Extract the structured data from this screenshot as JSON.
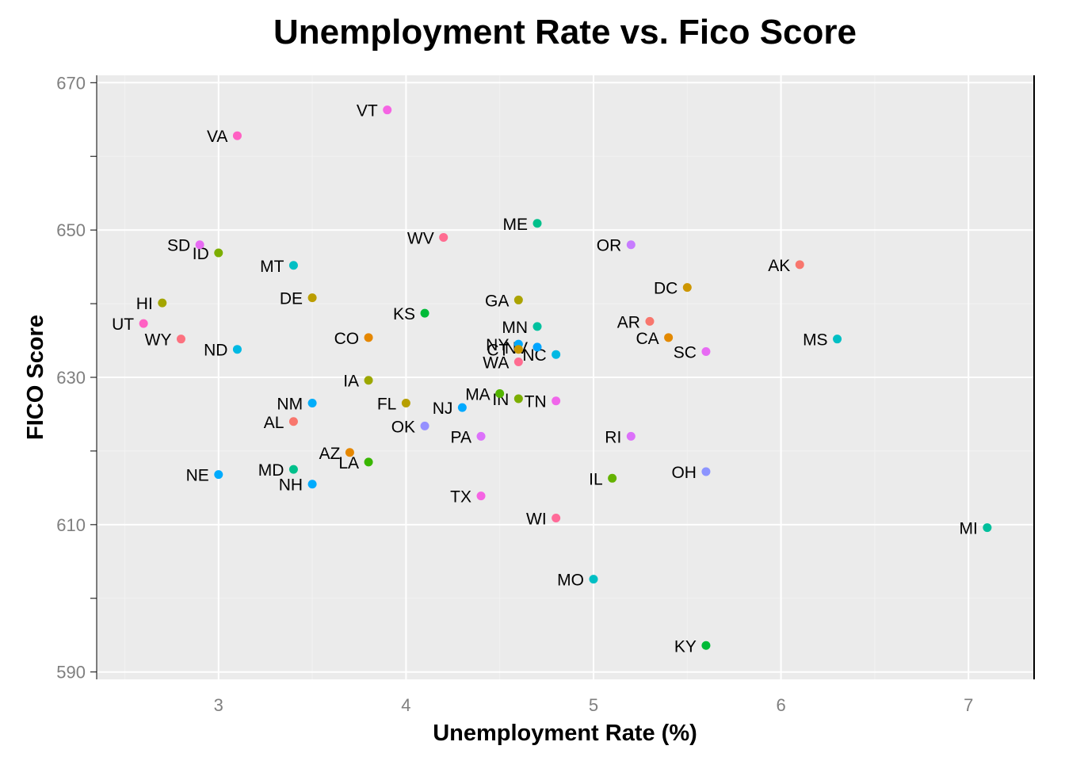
{
  "chart_data": {
    "type": "scatter",
    "title": "Unemployment Rate vs. Fico Score",
    "xlabel": "Unemployment Rate (%)",
    "ylabel": "FICO Score",
    "xlim": [
      2.35,
      7.35
    ],
    "ylim": [
      589,
      671
    ],
    "x_ticks": [
      3,
      4,
      5,
      6,
      7
    ],
    "y_ticks": [
      590,
      610,
      630,
      650,
      670
    ],
    "grid": true,
    "legend": "none",
    "points": [
      {
        "label": "VT",
        "x": 3.9,
        "y": 666.3,
        "color": "#F564E3"
      },
      {
        "label": "VA",
        "x": 3.1,
        "y": 662.8,
        "color": "#FF61C3"
      },
      {
        "label": "ME",
        "x": 4.7,
        "y": 650.9,
        "color": "#00C08B"
      },
      {
        "label": "WV",
        "x": 4.2,
        "y": 649.0,
        "color": "#FF6C91"
      },
      {
        "label": "SD",
        "x": 2.9,
        "y": 648.0,
        "color": "#E76BF3"
      },
      {
        "label": "OR",
        "x": 5.2,
        "y": 648.0,
        "color": "#C77CFF"
      },
      {
        "label": "ID",
        "x": 3.0,
        "y": 646.9,
        "color": "#7CAE00"
      },
      {
        "label": "MT",
        "x": 3.4,
        "y": 645.2,
        "color": "#00BFC4"
      },
      {
        "label": "AK",
        "x": 6.1,
        "y": 645.3,
        "color": "#F8766D"
      },
      {
        "label": "DC",
        "x": 5.5,
        "y": 642.2,
        "color": "#CD9600"
      },
      {
        "label": "DE",
        "x": 3.5,
        "y": 640.8,
        "color": "#BB9D00"
      },
      {
        "label": "GA",
        "x": 4.6,
        "y": 640.5,
        "color": "#ABA300"
      },
      {
        "label": "HI",
        "x": 2.7,
        "y": 640.1,
        "color": "#A3A500"
      },
      {
        "label": "KS",
        "x": 4.1,
        "y": 638.7,
        "color": "#00BA38"
      },
      {
        "label": "AR",
        "x": 5.3,
        "y": 637.6,
        "color": "#F8766D"
      },
      {
        "label": "UT",
        "x": 2.6,
        "y": 637.3,
        "color": "#FF61C3"
      },
      {
        "label": "MN",
        "x": 4.7,
        "y": 636.9,
        "color": "#00C19F"
      },
      {
        "label": "CO",
        "x": 3.8,
        "y": 635.4,
        "color": "#E58700"
      },
      {
        "label": "CA",
        "x": 5.4,
        "y": 635.4,
        "color": "#E38900"
      },
      {
        "label": "WY",
        "x": 2.8,
        "y": 635.2,
        "color": "#FC717F"
      },
      {
        "label": "MS",
        "x": 6.3,
        "y": 635.2,
        "color": "#00BFC4"
      },
      {
        "label": "NY",
        "x": 4.6,
        "y": 634.5,
        "color": "#00A9FF"
      },
      {
        "label": "CT",
        "x": 4.6,
        "y": 633.8,
        "color": "#C99800"
      },
      {
        "label": "NV",
        "x": 4.7,
        "y": 634.1,
        "color": "#00A5FF"
      },
      {
        "label": "ND",
        "x": 3.1,
        "y": 633.8,
        "color": "#00B9E3"
      },
      {
        "label": "SC",
        "x": 5.6,
        "y": 633.5,
        "color": "#E76BF3"
      },
      {
        "label": "NC",
        "x": 4.8,
        "y": 633.1,
        "color": "#00B9E3"
      },
      {
        "label": "WA",
        "x": 4.6,
        "y": 632.1,
        "color": "#FF6C91"
      },
      {
        "label": "IA",
        "x": 3.8,
        "y": 629.6,
        "color": "#9CA700"
      },
      {
        "label": "MA",
        "x": 4.5,
        "y": 627.8,
        "color": "#53B400"
      },
      {
        "label": "IN",
        "x": 4.6,
        "y": 627.1,
        "color": "#7CAE00"
      },
      {
        "label": "TN",
        "x": 4.8,
        "y": 626.8,
        "color": "#F066EA"
      },
      {
        "label": "FL",
        "x": 4.0,
        "y": 626.5,
        "color": "#B79F00"
      },
      {
        "label": "NM",
        "x": 3.5,
        "y": 626.5,
        "color": "#00ADFA"
      },
      {
        "label": "NJ",
        "x": 4.3,
        "y": 625.9,
        "color": "#00A9FF"
      },
      {
        "label": "AL",
        "x": 3.4,
        "y": 624.0,
        "color": "#F8766D"
      },
      {
        "label": "OK",
        "x": 4.1,
        "y": 623.4,
        "color": "#9590FF"
      },
      {
        "label": "PA",
        "x": 4.4,
        "y": 622.0,
        "color": "#DC71FA"
      },
      {
        "label": "RI",
        "x": 5.2,
        "y": 622.0,
        "color": "#DC71FA"
      },
      {
        "label": "AZ",
        "x": 3.7,
        "y": 619.8,
        "color": "#E58700"
      },
      {
        "label": "LA",
        "x": 3.8,
        "y": 618.5,
        "color": "#39B600"
      },
      {
        "label": "MD",
        "x": 3.4,
        "y": 617.5,
        "color": "#00C08B"
      },
      {
        "label": "OH",
        "x": 5.6,
        "y": 617.2,
        "color": "#8C94FF"
      },
      {
        "label": "NE",
        "x": 3.0,
        "y": 616.8,
        "color": "#00ABFD"
      },
      {
        "label": "IL",
        "x": 5.1,
        "y": 616.3,
        "color": "#64B200"
      },
      {
        "label": "NH",
        "x": 3.5,
        "y": 615.5,
        "color": "#00ABFD"
      },
      {
        "label": "TX",
        "x": 4.4,
        "y": 613.9,
        "color": "#F564E3"
      },
      {
        "label": "WI",
        "x": 4.8,
        "y": 610.9,
        "color": "#FF6A98"
      },
      {
        "label": "MI",
        "x": 7.1,
        "y": 609.6,
        "color": "#00BF9C"
      },
      {
        "label": "MO",
        "x": 5.0,
        "y": 602.6,
        "color": "#00BFC4"
      },
      {
        "label": "KY",
        "x": 5.6,
        "y": 593.6,
        "color": "#00BA38"
      }
    ]
  },
  "colors": {
    "panel_background": "#EBEBEB",
    "grid_major": "#FFFFFF",
    "grid_minor": "#F2F2F2",
    "tick_text": "#7F7F7F",
    "axis_line": "#000000"
  }
}
